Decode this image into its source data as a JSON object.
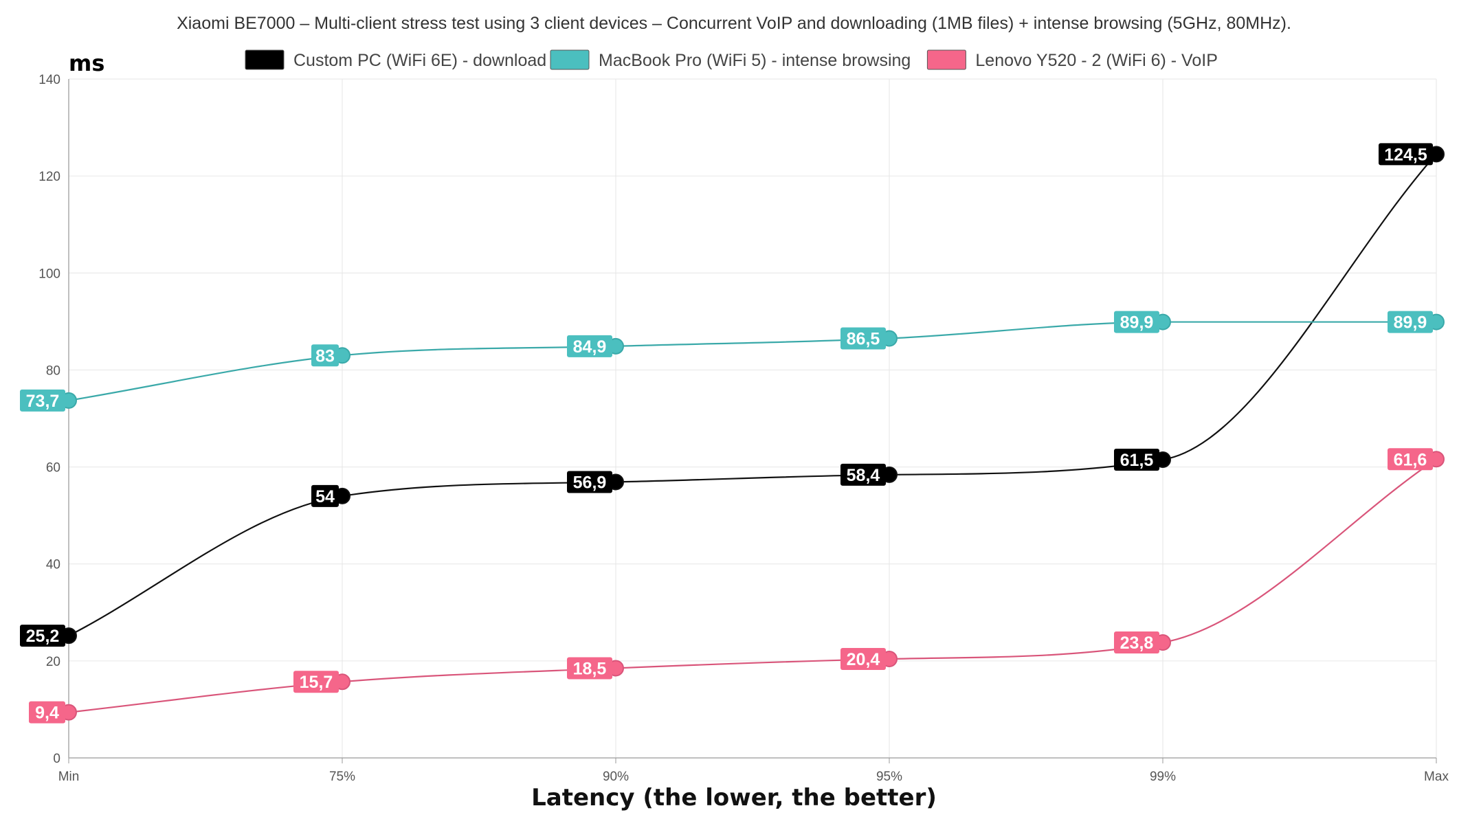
{
  "chart_data": {
    "type": "line",
    "title": "Xiaomi BE7000 – Multi-client stress test using 3 client devices – Concurrent VoIP and downloading (1MB files) + intense browsing (5GHz, 80MHz).",
    "ylabel": "ms",
    "xlabel": "Latency (the lower, the better)",
    "categories": [
      "Min",
      "75%",
      "90%",
      "95%",
      "99%",
      "Max"
    ],
    "ylim": [
      0,
      140
    ],
    "yticks": [
      0,
      20,
      40,
      60,
      80,
      100,
      120,
      140
    ],
    "grid": true,
    "legend_position": "top",
    "series": [
      {
        "name": "Custom PC (WiFi 6E) - download",
        "color": "#000000",
        "values": [
          25.2,
          54,
          56.9,
          58.4,
          61.5,
          124.5
        ],
        "labels": [
          "25,2",
          "54",
          "56,9",
          "58,4",
          "61,5",
          "124,5"
        ]
      },
      {
        "name": "MacBook Pro (WiFi 5) - intense browsing",
        "color": "#4bbfbf",
        "values": [
          73.7,
          83,
          84.9,
          86.5,
          89.9,
          89.9
        ],
        "labels": [
          "73,7",
          "83",
          "84,9",
          "86,5",
          "89,9",
          "89,9"
        ]
      },
      {
        "name": "Lenovo Y520 - 2 (WiFi 6) - VoIP",
        "color": "#f5668a",
        "values": [
          9.4,
          15.7,
          18.5,
          20.4,
          23.8,
          61.6
        ],
        "labels": [
          "9,4",
          "15,7",
          "18,5",
          "20,4",
          "23,8",
          "61,6"
        ]
      }
    ]
  }
}
